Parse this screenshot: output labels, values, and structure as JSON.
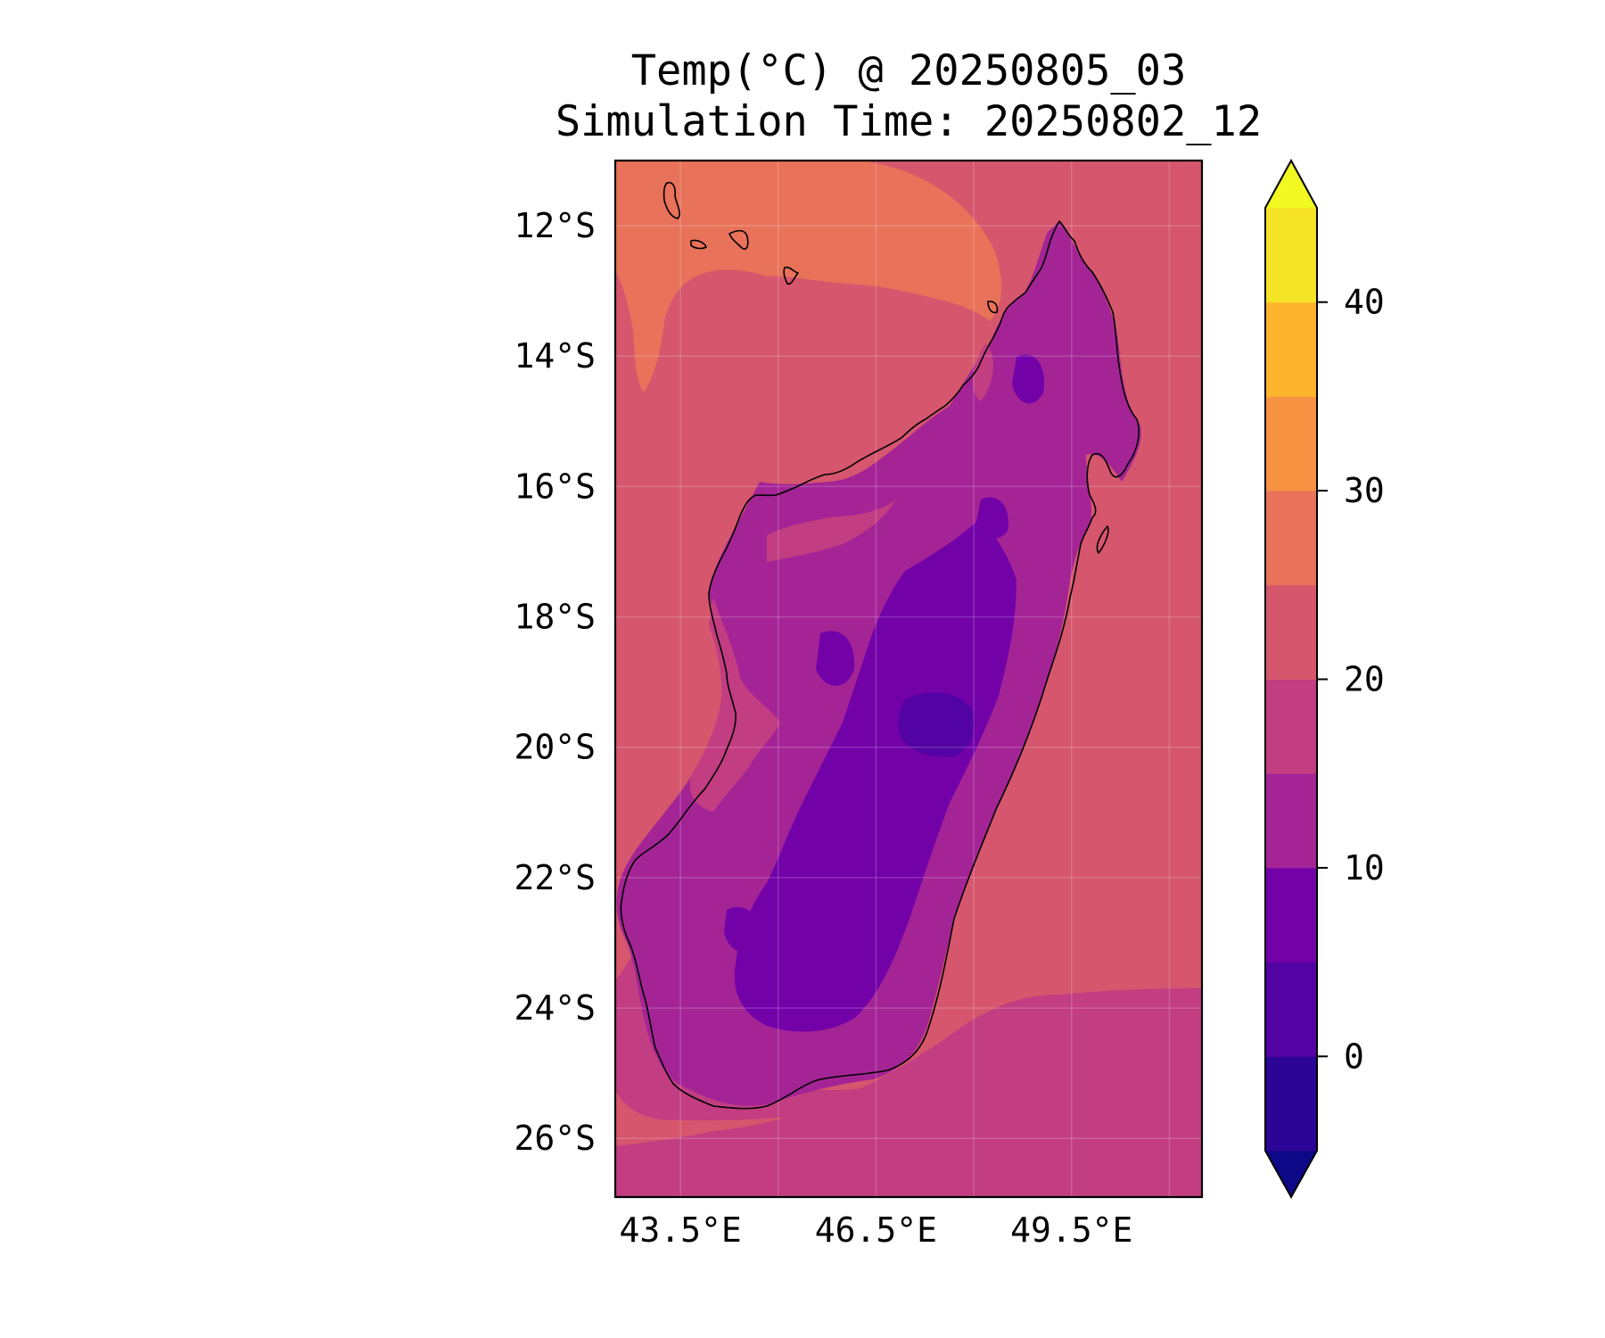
{
  "title": {
    "line1": "Temp(°C) @ 20250805_03",
    "line2": "Simulation Time: 20250802_12"
  },
  "map": {
    "type": "filled-contour",
    "variable": "Temp(°C)",
    "region": "Madagascar",
    "lon_range": [
      42.5,
      51.5
    ],
    "lat_range": [
      -26.9,
      -11.0
    ],
    "x_ticks": [
      {
        "value": 43.5,
        "label": "43.5°E"
      },
      {
        "value": 46.5,
        "label": "46.5°E"
      },
      {
        "value": 49.5,
        "label": "49.5°E"
      }
    ],
    "y_ticks": [
      {
        "value": -12,
        "label": "12°S"
      },
      {
        "value": -14,
        "label": "14°S"
      },
      {
        "value": -16,
        "label": "16°S"
      },
      {
        "value": -18,
        "label": "18°S"
      },
      {
        "value": -20,
        "label": "20°S"
      },
      {
        "value": -22,
        "label": "22°S"
      },
      {
        "value": -24,
        "label": "24°S"
      },
      {
        "value": -26,
        "label": "26°S"
      }
    ],
    "extra_grid_lon": [
      45.0,
      48.0,
      51.0
    ],
    "grid": true,
    "colors": {
      "ocean_warm": "#d5566d",
      "ocean_hot": "#e8725a",
      "ocean_cool": "#c23d82",
      "land_mid": "#a42496",
      "land_cool": "#8b0da4",
      "land_cold": "#7201a8",
      "land_coldest": "#5302a3"
    }
  },
  "colorbar": {
    "min": -5,
    "max": 45,
    "extend": "both",
    "levels": [
      {
        "from": -5,
        "to": 0,
        "color": "#2b0595"
      },
      {
        "from": 0,
        "to": 5,
        "color": "#5302a3"
      },
      {
        "from": 5,
        "to": 10,
        "color": "#7201a8"
      },
      {
        "from": 10,
        "to": 15,
        "color": "#a42496"
      },
      {
        "from": 15,
        "to": 20,
        "color": "#c23d82"
      },
      {
        "from": 20,
        "to": 25,
        "color": "#d5566d"
      },
      {
        "from": 25,
        "to": 30,
        "color": "#e8725a"
      },
      {
        "from": 30,
        "to": 35,
        "color": "#f79342"
      },
      {
        "from": 35,
        "to": 40,
        "color": "#fdb52d"
      },
      {
        "from": 40,
        "to": 45,
        "color": "#f5e325"
      }
    ],
    "under_color": "#0d0887",
    "over_color": "#f0f921",
    "ticks": [
      {
        "value": 0,
        "label": "0"
      },
      {
        "value": 10,
        "label": "10"
      },
      {
        "value": 20,
        "label": "20"
      },
      {
        "value": 30,
        "label": "30"
      },
      {
        "value": 40,
        "label": "40"
      }
    ]
  }
}
